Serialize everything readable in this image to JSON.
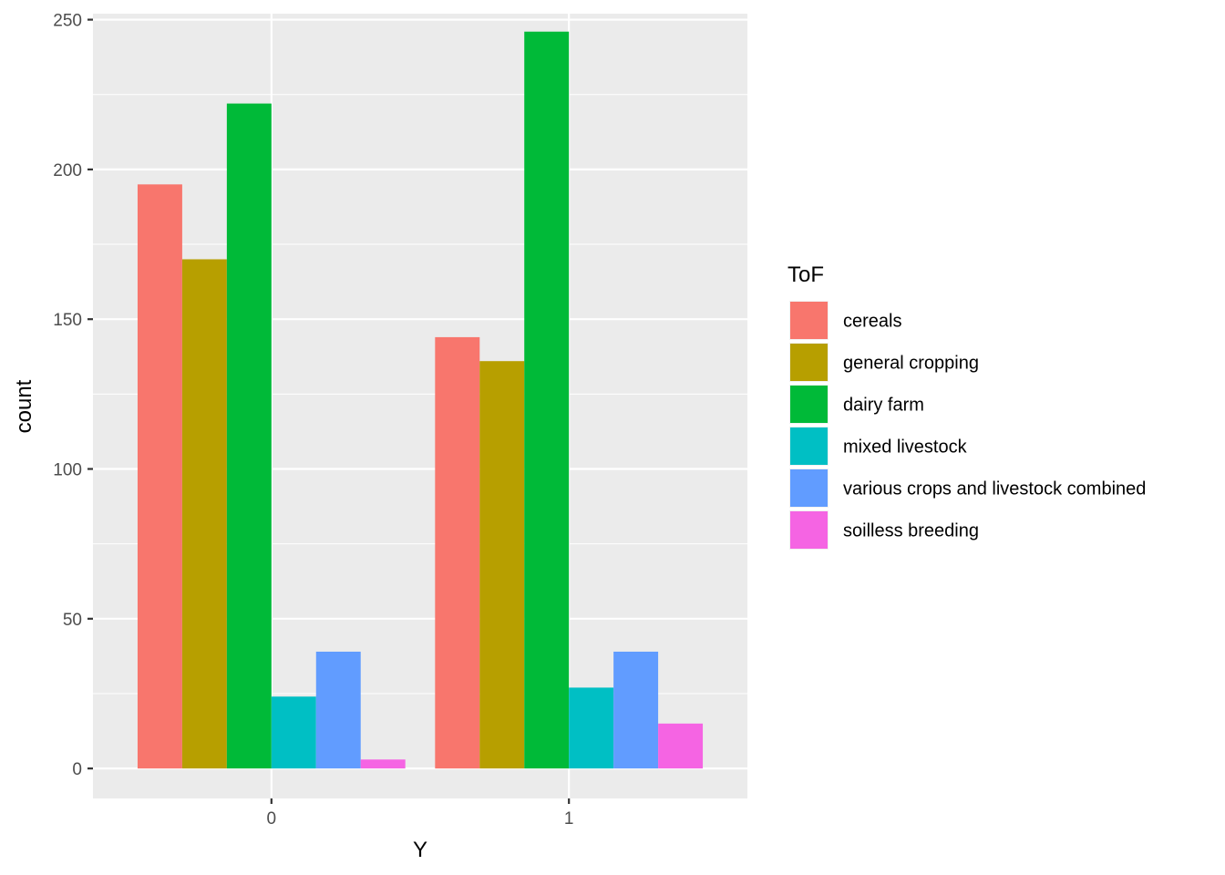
{
  "chart_data": {
    "type": "bar",
    "title": "",
    "xlabel": "Y",
    "ylabel": "count",
    "categories": [
      "0",
      "1"
    ],
    "ylim": [
      -10,
      252
    ],
    "yticks": [
      0,
      50,
      100,
      150,
      200,
      250
    ],
    "yticks_labels": [
      "0",
      "50",
      "100",
      "150",
      "200",
      "250"
    ],
    "grid": true,
    "legend_position": "right",
    "legend_title": "ToF",
    "series": [
      {
        "name": "cereals",
        "color": "#F8766D",
        "values": [
          195,
          144
        ]
      },
      {
        "name": "general cropping",
        "color": "#B79F00",
        "values": [
          170,
          136
        ]
      },
      {
        "name": "dairy farm",
        "color": "#00BA38",
        "values": [
          222,
          246
        ]
      },
      {
        "name": "mixed livestock",
        "color": "#00BFC4",
        "values": [
          24,
          27
        ]
      },
      {
        "name": "various crops and livestock combined",
        "color": "#619CFF",
        "values": [
          39,
          39
        ]
      },
      {
        "name": "soilless breeding",
        "color": "#F564E3",
        "values": [
          3,
          15
        ]
      }
    ]
  }
}
